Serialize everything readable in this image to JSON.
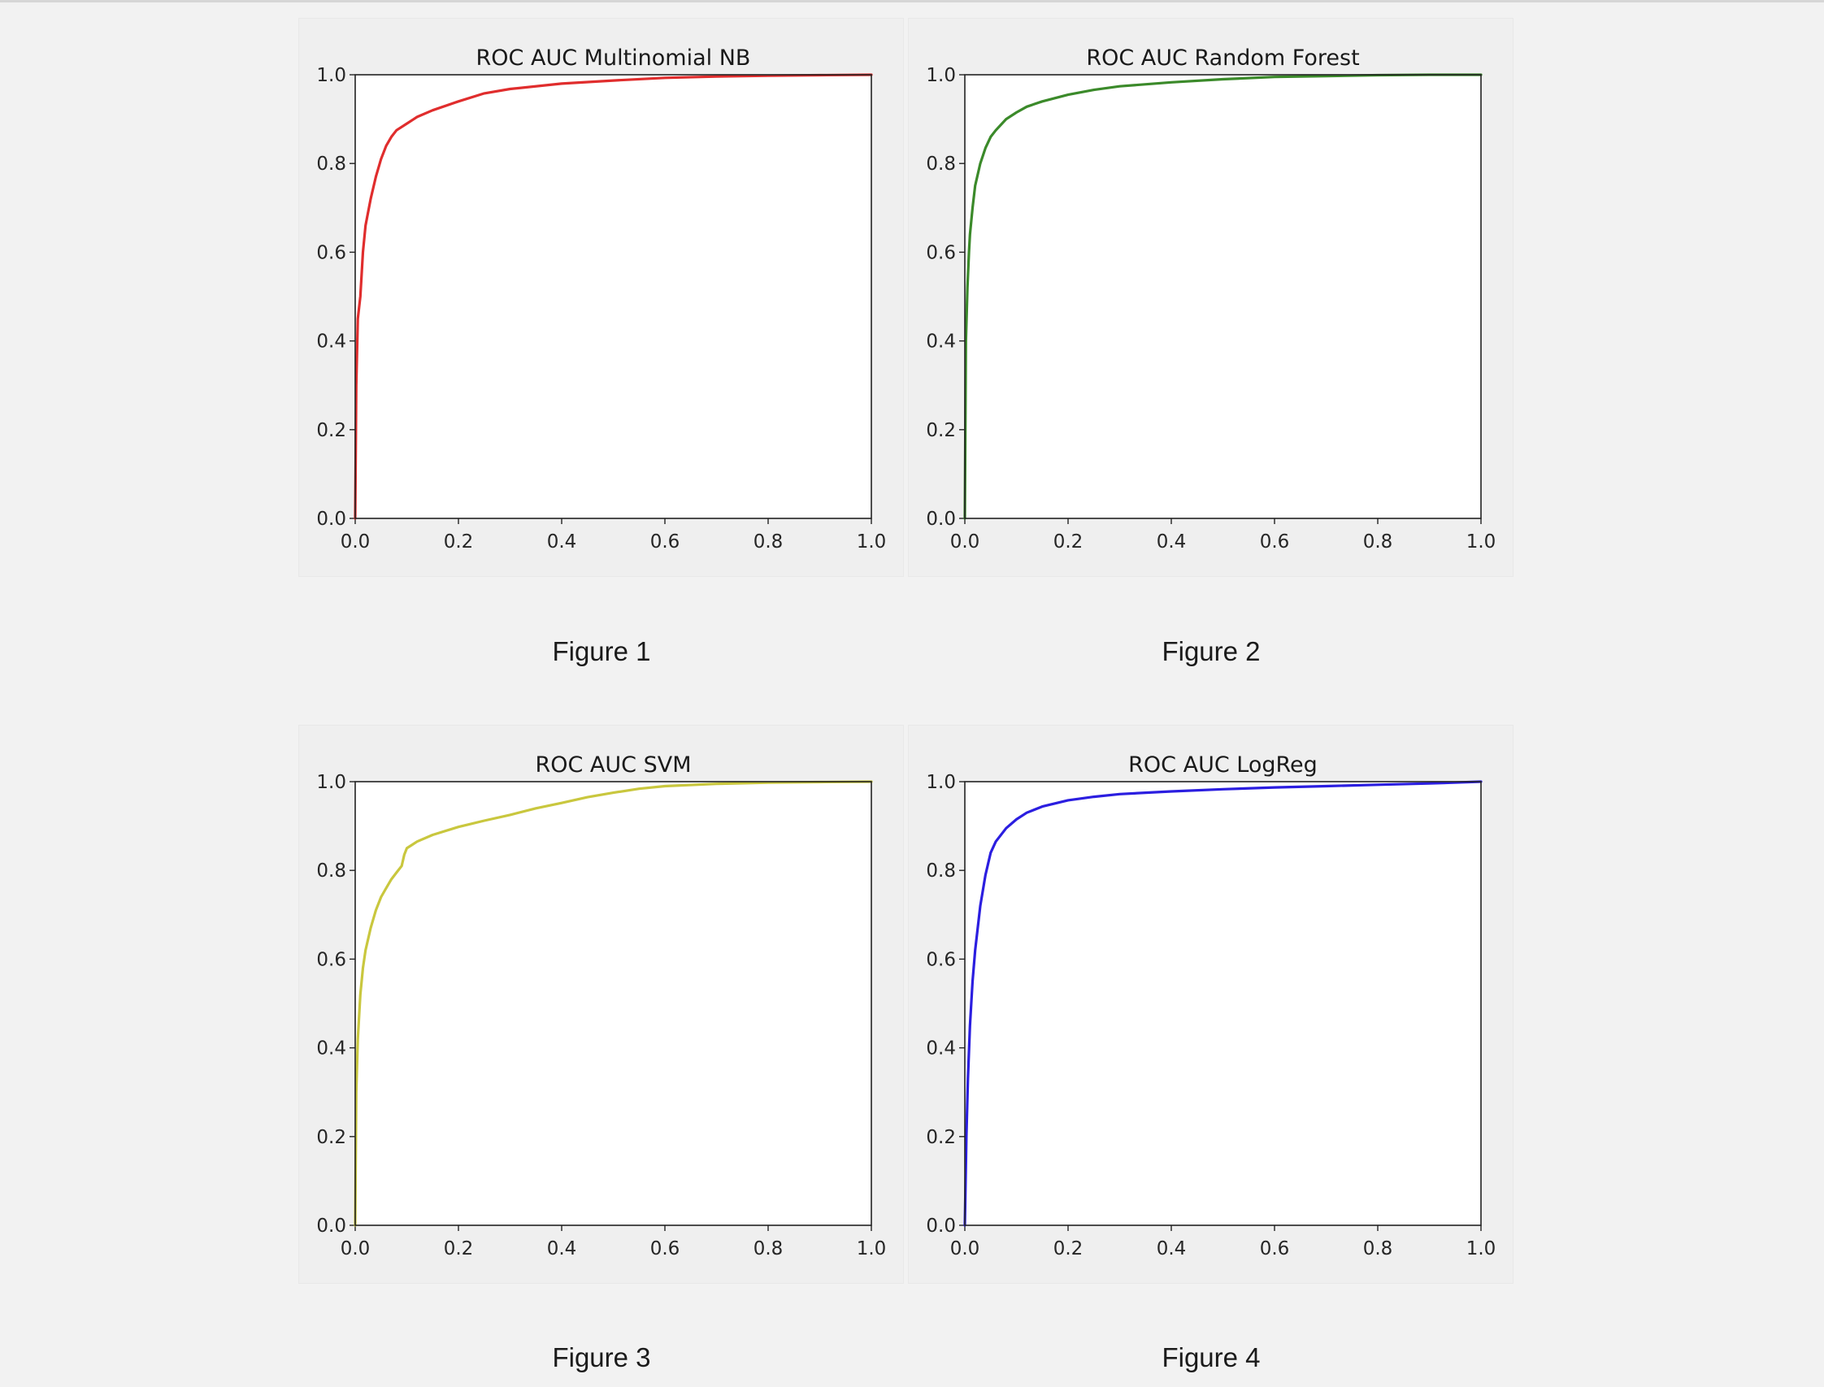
{
  "chart_data": [
    {
      "type": "line",
      "title": "ROC AUC Multinomial NB",
      "color": "#e02d2d",
      "xlim": [
        0,
        1
      ],
      "ylim": [
        0,
        1
      ],
      "xticks": [
        "0.0",
        "0.2",
        "0.4",
        "0.6",
        "0.8",
        "1.0"
      ],
      "yticks": [
        "0.0",
        "0.2",
        "0.4",
        "0.6",
        "0.8",
        "1.0"
      ],
      "xlabel": "",
      "ylabel": "",
      "x": [
        0,
        0.002,
        0.005,
        0.01,
        0.015,
        0.02,
        0.03,
        0.04,
        0.05,
        0.06,
        0.07,
        0.08,
        0.1,
        0.12,
        0.15,
        0.2,
        0.25,
        0.3,
        0.4,
        0.5,
        0.6,
        0.7,
        0.8,
        0.9,
        1.0
      ],
      "y": [
        0,
        0.3,
        0.45,
        0.5,
        0.6,
        0.66,
        0.72,
        0.77,
        0.81,
        0.84,
        0.86,
        0.875,
        0.89,
        0.905,
        0.92,
        0.94,
        0.958,
        0.968,
        0.98,
        0.987,
        0.993,
        0.996,
        0.998,
        0.999,
        1.0
      ]
    },
    {
      "type": "line",
      "title": "ROC AUC Random Forest",
      "color": "#3b8a2a",
      "xlim": [
        0,
        1
      ],
      "ylim": [
        0,
        1
      ],
      "xticks": [
        "0.0",
        "0.2",
        "0.4",
        "0.6",
        "0.8",
        "1.0"
      ],
      "yticks": [
        "0.0",
        "0.2",
        "0.4",
        "0.6",
        "0.8",
        "1.0"
      ],
      "xlabel": "",
      "ylabel": "",
      "x": [
        0,
        0.002,
        0.005,
        0.008,
        0.01,
        0.015,
        0.02,
        0.03,
        0.04,
        0.05,
        0.06,
        0.08,
        0.1,
        0.12,
        0.15,
        0.2,
        0.25,
        0.3,
        0.4,
        0.5,
        0.6,
        0.7,
        0.8,
        0.9,
        1.0
      ],
      "y": [
        0,
        0.4,
        0.52,
        0.6,
        0.64,
        0.7,
        0.75,
        0.8,
        0.835,
        0.86,
        0.875,
        0.9,
        0.915,
        0.928,
        0.94,
        0.955,
        0.966,
        0.974,
        0.983,
        0.99,
        0.995,
        0.997,
        0.999,
        1.0,
        1.0
      ]
    },
    {
      "type": "line",
      "title": "ROC AUC SVM",
      "color": "#c9c73e",
      "xlim": [
        0,
        1
      ],
      "ylim": [
        0,
        1
      ],
      "xticks": [
        "0.0",
        "0.2",
        "0.4",
        "0.6",
        "0.8",
        "1.0"
      ],
      "yticks": [
        "0.0",
        "0.2",
        "0.4",
        "0.6",
        "0.8",
        "1.0"
      ],
      "xlabel": "",
      "ylabel": "",
      "x": [
        0,
        0.002,
        0.005,
        0.01,
        0.015,
        0.02,
        0.03,
        0.04,
        0.05,
        0.06,
        0.07,
        0.08,
        0.09,
        0.095,
        0.1,
        0.12,
        0.15,
        0.2,
        0.25,
        0.3,
        0.35,
        0.4,
        0.45,
        0.5,
        0.55,
        0.6,
        0.7,
        0.8,
        0.9,
        1.0
      ],
      "y": [
        0,
        0.3,
        0.42,
        0.52,
        0.58,
        0.62,
        0.67,
        0.71,
        0.74,
        0.76,
        0.78,
        0.795,
        0.81,
        0.835,
        0.85,
        0.865,
        0.88,
        0.898,
        0.912,
        0.925,
        0.94,
        0.952,
        0.965,
        0.975,
        0.984,
        0.99,
        0.995,
        0.998,
        0.999,
        1.0
      ]
    },
    {
      "type": "line",
      "title": "ROC AUC LogReg",
      "color": "#2b1ee0",
      "xlim": [
        0,
        1
      ],
      "ylim": [
        0,
        1
      ],
      "xticks": [
        "0.0",
        "0.2",
        "0.4",
        "0.6",
        "0.8",
        "1.0"
      ],
      "yticks": [
        "0.0",
        "0.2",
        "0.4",
        "0.6",
        "0.8",
        "1.0"
      ],
      "xlabel": "",
      "ylabel": "",
      "x": [
        0,
        0.003,
        0.006,
        0.01,
        0.015,
        0.02,
        0.03,
        0.04,
        0.05,
        0.06,
        0.08,
        0.1,
        0.12,
        0.15,
        0.2,
        0.25,
        0.3,
        0.4,
        0.5,
        0.6,
        0.7,
        0.8,
        0.9,
        1.0
      ],
      "y": [
        0,
        0.2,
        0.33,
        0.45,
        0.55,
        0.62,
        0.72,
        0.79,
        0.84,
        0.865,
        0.895,
        0.915,
        0.93,
        0.944,
        0.958,
        0.966,
        0.972,
        0.978,
        0.983,
        0.987,
        0.99,
        0.993,
        0.996,
        1.0
      ]
    }
  ],
  "captions": {
    "fig1": "Figure 1",
    "fig2": "Figure 2",
    "fig3": "Figure 3",
    "fig4": "Figure 4"
  }
}
